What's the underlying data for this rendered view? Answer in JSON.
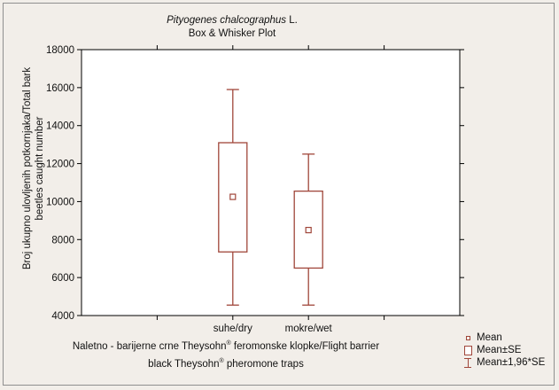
{
  "chart_data": {
    "type": "box",
    "title_species": "Pityogenes chalcographus",
    "title_suffix": "L.",
    "title_line2": "Box & Whisker Plot",
    "ylabel_line1": "Broj ukupno ulovljenih potkornjaka/Total bark",
    "ylabel_line2": "beetles caught number",
    "xlabel_line1_pre": "Naletno - barijerne crne Theysohn",
    "xlabel_line1_post": " feromonske klopke/Flight barrier",
    "xlabel_line2_pre": "black Theysohn",
    "xlabel_line2_post": " pheromone traps",
    "registered_mark": "®",
    "ylim": [
      4000,
      18000
    ],
    "yticks": [
      4000,
      6000,
      8000,
      10000,
      12000,
      14000,
      16000,
      18000
    ],
    "categories": [
      "suhe/dry",
      "mokre/wet"
    ],
    "series": [
      {
        "category": "suhe/dry",
        "mean": 10250,
        "se_low": 7350,
        "se_high": 13100,
        "ci_low": 4550,
        "ci_high": 15900
      },
      {
        "category": "mokre/wet",
        "mean": 8500,
        "se_low": 6500,
        "se_high": 10550,
        "ci_low": 4550,
        "ci_high": 12500
      }
    ],
    "legend": [
      "Mean",
      "Mean±SE",
      "Mean±1,96*SE"
    ],
    "legend_position": "bottom-right",
    "grid": false,
    "colors": {
      "box": "#a0463a",
      "axis": "#000000",
      "background": "#f2eee9",
      "plot_background": "#ffffff"
    }
  }
}
